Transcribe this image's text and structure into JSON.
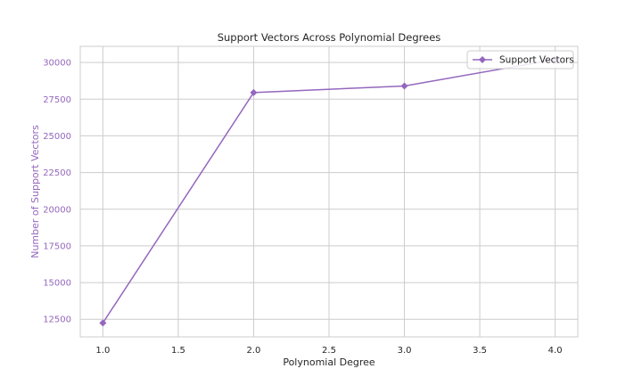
{
  "chart_data": {
    "type": "line",
    "title": "Support Vectors Across Polynomial Degrees",
    "xlabel": "Polynomial Degree",
    "ylabel": "Number of Support Vectors",
    "x": [
      1,
      2,
      3,
      4
    ],
    "series": [
      {
        "name": "Support Vectors",
        "values": [
          12250,
          27950,
          28400,
          30200
        ],
        "color": "#9467bd",
        "marker": "diamond"
      }
    ],
    "xlim": [
      0.85,
      4.15
    ],
    "ylim": [
      11300,
      31100
    ],
    "xticks": [
      1.0,
      1.5,
      2.0,
      2.5,
      3.0,
      3.5,
      4.0
    ],
    "xtick_labels": [
      "1.0",
      "1.5",
      "2.0",
      "2.5",
      "3.0",
      "3.5",
      "4.0"
    ],
    "yticks": [
      12500,
      15000,
      17500,
      20000,
      22500,
      25000,
      27500,
      30000
    ],
    "ytick_labels": [
      "12500",
      "15000",
      "17500",
      "20000",
      "22500",
      "25000",
      "27500",
      "30000"
    ],
    "grid": true,
    "legend_position": "top-right",
    "ylabel_color": "#9467bd",
    "ytick_color": "#9467bd",
    "xtick_color": "#262626"
  }
}
